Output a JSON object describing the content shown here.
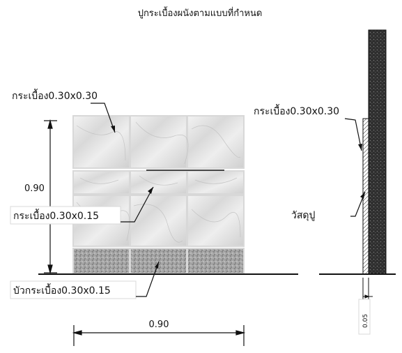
{
  "title": "ปูกระเบื้องผนังตามแบบที่กำหนด",
  "labels": {
    "tile_large": "กระเบื้อง0.30x0.30",
    "tile_small": "กระเบื้อง0.30x0.15",
    "tile_base": "บัวกระเบื้อง0.30x0.15",
    "height_dim": "0.90",
    "width_dim": "0.90",
    "section_tile": "กระเบื้อง0.30x0.30",
    "section_material": "วัสดุปู",
    "section_thickness": "0.05"
  },
  "colors": {
    "line": "#111111",
    "tile_edge": "#d8d8d8",
    "base_tile": "#9a9a9a",
    "wall": "#3a3a3a"
  }
}
